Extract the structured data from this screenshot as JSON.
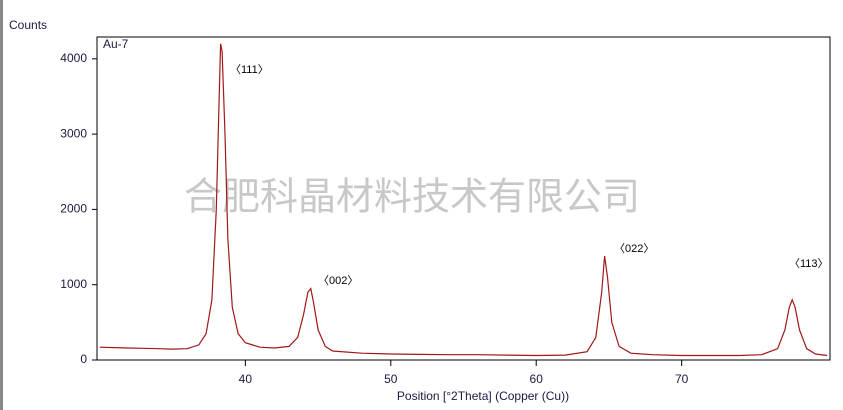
{
  "chart_data": {
    "type": "line",
    "y_axis_label": "Counts",
    "x_axis_label": "Position [°2Theta] (Copper (Cu))",
    "sample_label": "Au-7",
    "watermark": "合肥科晶材料技术有限公司",
    "annotations": [
      "〈111〉",
      "〈002〉",
      "〈022〉",
      "〈113〉"
    ],
    "xlim": [
      29.8,
      80.2
    ],
    "ylim": [
      0,
      4290
    ],
    "xticks": [
      40,
      50,
      60,
      70
    ],
    "yticks": [
      0,
      1000,
      2000,
      3000,
      4000
    ],
    "x": [
      30,
      31,
      32,
      33,
      34,
      35,
      36,
      36.8,
      37.3,
      37.7,
      38.0,
      38.2,
      38.3,
      38.4,
      38.6,
      38.8,
      39.1,
      39.5,
      40,
      41,
      42,
      43,
      43.6,
      44.0,
      44.3,
      44.5,
      44.7,
      45.0,
      45.5,
      46,
      48,
      50,
      52,
      54,
      56,
      58,
      60,
      62,
      63.5,
      64.1,
      64.5,
      64.7,
      64.9,
      65.2,
      65.7,
      66.5,
      68,
      70,
      72,
      74,
      75.5,
      76.6,
      77.1,
      77.4,
      77.6,
      77.8,
      78.1,
      78.6,
      79.2,
      80
    ],
    "series": [
      {
        "color": "#a01818",
        "values": [
          170,
          165,
          160,
          155,
          150,
          145,
          150,
          200,
          350,
          800,
          2000,
          3500,
          4200,
          4100,
          3000,
          1600,
          700,
          350,
          230,
          170,
          160,
          180,
          300,
          600,
          900,
          950,
          750,
          400,
          180,
          120,
          90,
          80,
          75,
          70,
          70,
          65,
          60,
          65,
          110,
          300,
          900,
          1380,
          1100,
          500,
          180,
          90,
          70,
          60,
          60,
          60,
          70,
          150,
          400,
          700,
          800,
          700,
          400,
          150,
          80,
          60
        ]
      }
    ]
  }
}
